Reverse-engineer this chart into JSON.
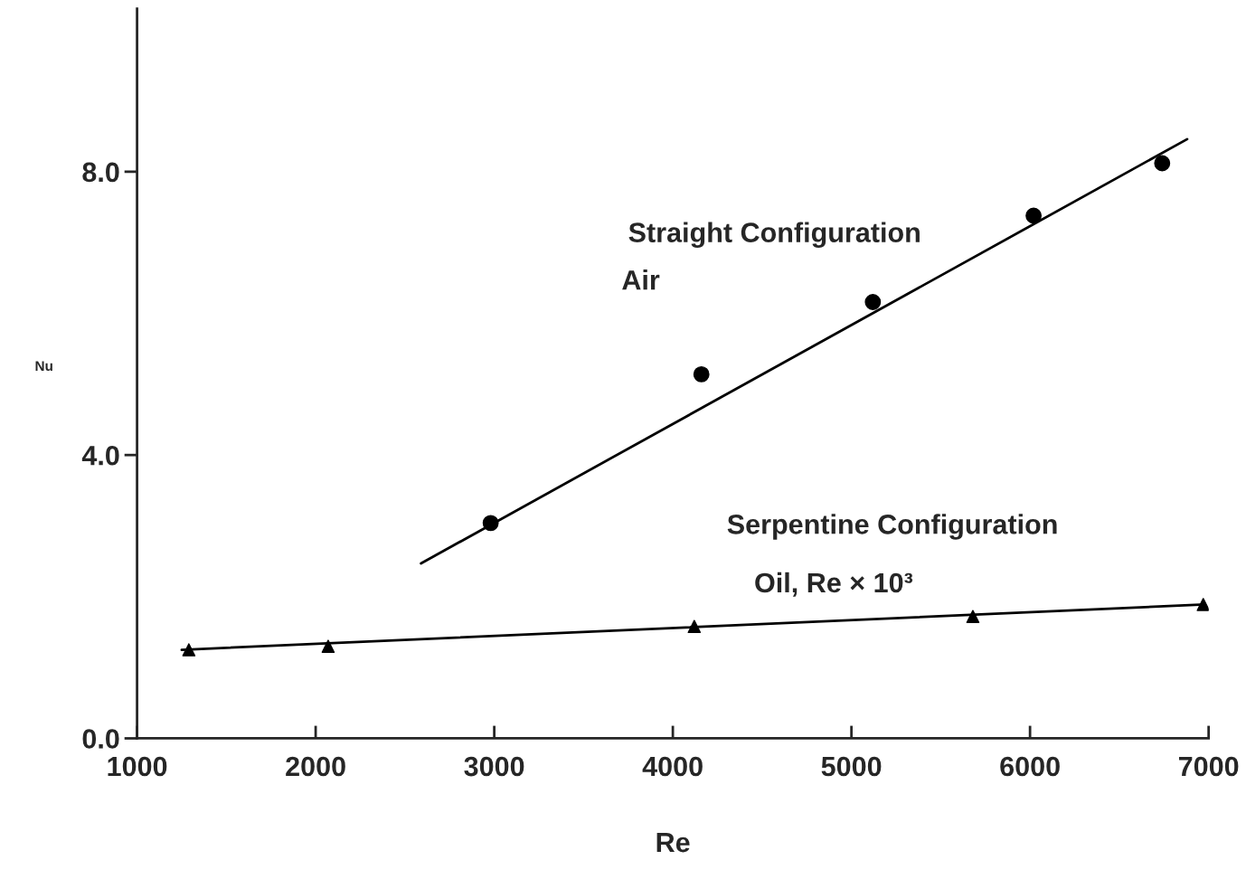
{
  "chart_data": {
    "type": "scatter",
    "xlabel": "Re",
    "ylabel": "Nu",
    "xlim": [
      1000,
      7000
    ],
    "ylim": [
      0,
      10.3
    ],
    "xticks": [
      1000,
      2000,
      3000,
      4000,
      5000,
      6000,
      7000
    ],
    "yticks": [
      {
        "value": 0,
        "label": "0.0"
      },
      {
        "value": 4,
        "label": "4.0"
      },
      {
        "value": 8,
        "label": "8.0"
      }
    ],
    "grid": false,
    "legend": false,
    "series": [
      {
        "marker": "circle",
        "color": "#000000",
        "x": [
          2980,
          4160,
          5120,
          6020,
          6740
        ],
        "values": [
          3.04,
          5.14,
          6.16,
          7.38,
          8.12
        ]
      },
      {
        "type": "line",
        "marker": "none",
        "color": "#000000",
        "x": [
          2590,
          6880
        ],
        "values": [
          2.47,
          8.46
        ]
      },
      {
        "marker": "triangle",
        "color": "#000000",
        "x": [
          1290,
          2070,
          4120,
          5680,
          6970
        ],
        "values": [
          1.25,
          1.3,
          1.58,
          1.72,
          1.89
        ]
      },
      {
        "type": "line",
        "marker": "none",
        "color": "#000000",
        "x": [
          1250,
          6980
        ],
        "values": [
          1.25,
          1.89
        ]
      }
    ],
    "annotations": [
      "Straight Configuration",
      "Air",
      "Serpentine Configuration",
      "Oil, Re × 10³"
    ]
  }
}
